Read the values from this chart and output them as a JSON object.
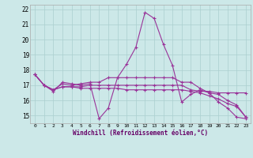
{
  "xlabel": "Windchill (Refroidissement éolien,°C)",
  "background_color": "#cce8e8",
  "grid_color": "#aacfcf",
  "line_color": "#993399",
  "xlim": [
    -0.5,
    23.5
  ],
  "ylim": [
    14.5,
    22.3
  ],
  "yticks": [
    15,
    16,
    17,
    18,
    19,
    20,
    21,
    22
  ],
  "xticks": [
    0,
    1,
    2,
    3,
    4,
    5,
    6,
    7,
    8,
    9,
    10,
    11,
    12,
    13,
    14,
    15,
    16,
    17,
    18,
    19,
    20,
    21,
    22,
    23
  ],
  "series": [
    [
      17.7,
      17.0,
      16.6,
      17.2,
      17.1,
      17.0,
      17.1,
      14.8,
      15.5,
      17.5,
      18.4,
      19.5,
      21.8,
      21.4,
      19.7,
      18.3,
      15.9,
      16.4,
      16.7,
      16.5,
      15.9,
      15.5,
      14.9,
      14.8
    ],
    [
      17.7,
      17.0,
      16.7,
      16.9,
      16.9,
      16.8,
      16.8,
      16.8,
      16.8,
      16.8,
      16.7,
      16.7,
      16.7,
      16.7,
      16.7,
      16.7,
      16.7,
      16.6,
      16.5,
      16.3,
      16.1,
      15.8,
      15.6,
      14.9
    ],
    [
      17.7,
      17.0,
      16.7,
      16.9,
      16.9,
      16.9,
      17.0,
      17.0,
      17.0,
      17.0,
      17.0,
      17.0,
      17.0,
      17.0,
      17.0,
      17.0,
      17.0,
      16.7,
      16.6,
      16.6,
      16.5,
      16.5,
      16.5,
      16.5
    ],
    [
      17.7,
      17.0,
      16.7,
      17.1,
      17.0,
      17.1,
      17.2,
      17.2,
      17.5,
      17.5,
      17.5,
      17.5,
      17.5,
      17.5,
      17.5,
      17.5,
      17.2,
      17.2,
      16.8,
      16.5,
      16.4,
      16.0,
      15.7,
      14.9
    ]
  ]
}
